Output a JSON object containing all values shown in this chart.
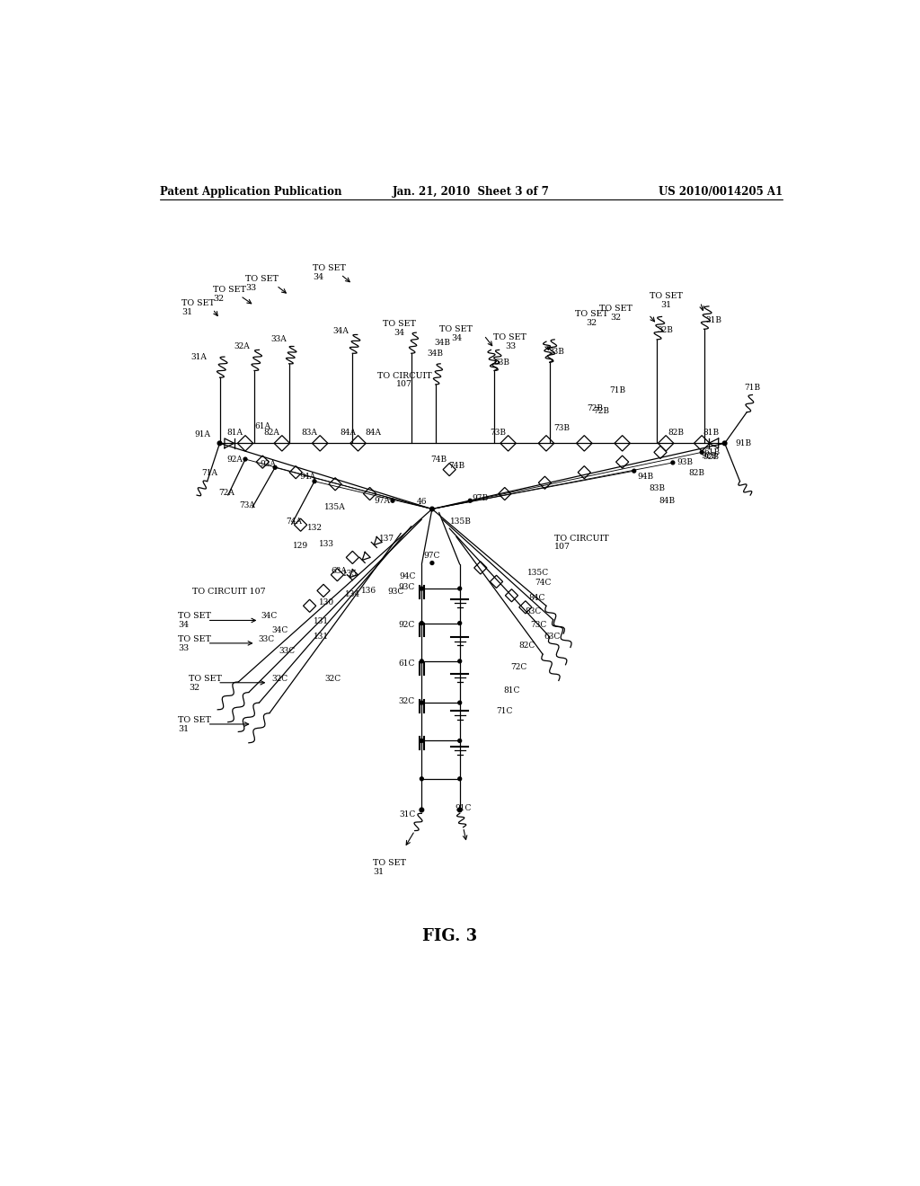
{
  "bg_color": "#ffffff",
  "header_left": "Patent Application Publication",
  "header_mid": "Jan. 21, 2010  Sheet 3 of 7",
  "header_right": "US 2010/0014205 A1",
  "figure_label": "FIG. 3"
}
